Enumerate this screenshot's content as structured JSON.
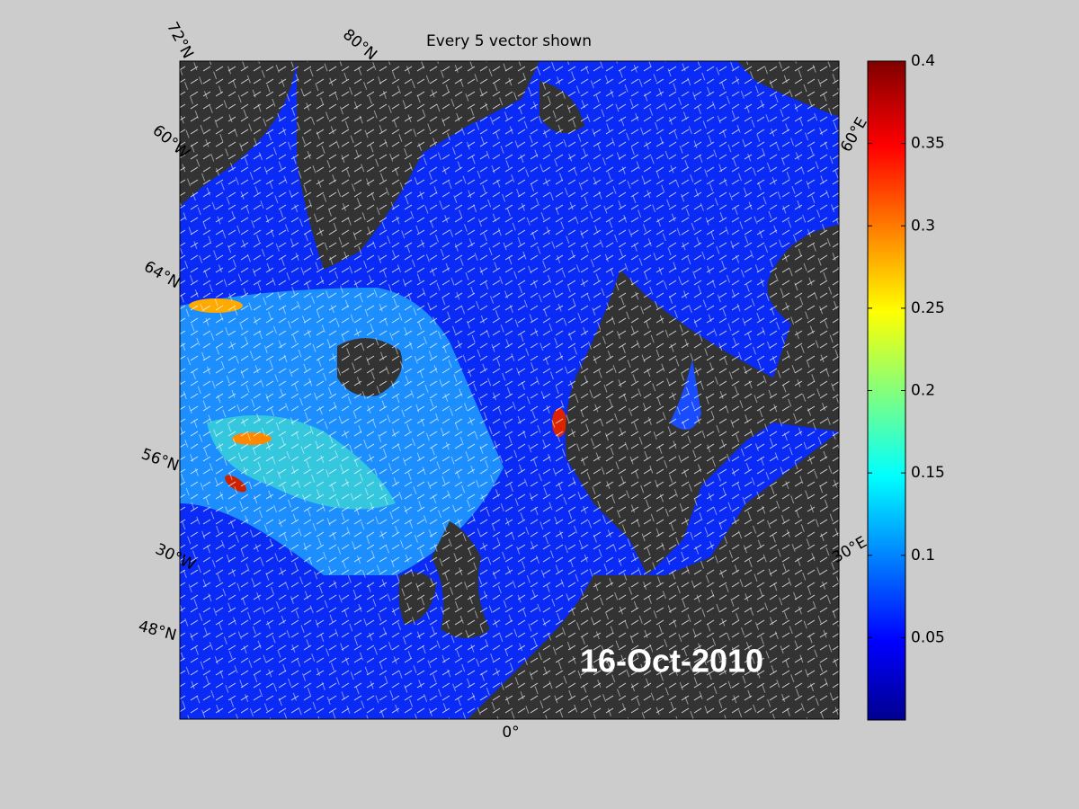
{
  "title": "Every 5 vector shown",
  "date": "16-Oct-2010",
  "graticule_labels": [
    "72°N",
    "80°N",
    "60°W",
    "64°N",
    "56°N",
    "30°W",
    "48°N",
    "0°",
    "30°E",
    "60°E"
  ],
  "colorbar": {
    "clim": [
      0,
      0.4
    ],
    "ticks": [
      0.05,
      0.1,
      0.15,
      0.2,
      0.25,
      0.3,
      0.35,
      0.4
    ]
  }
}
